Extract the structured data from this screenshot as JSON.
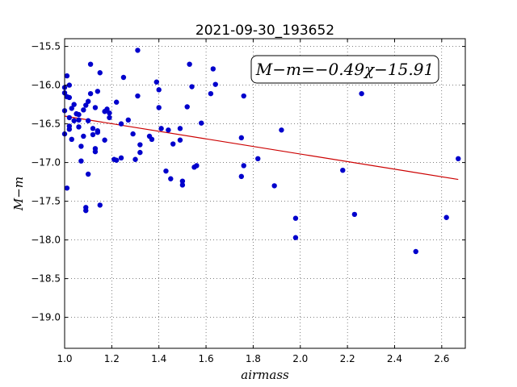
{
  "chart_data": {
    "type": "scatter",
    "title": "2021-09-30_193652",
    "xlabel": "airmass",
    "ylabel": "M−m",
    "xlim": [
      1.0,
      2.7
    ],
    "ylim": [
      -15.4,
      -19.4
    ],
    "y_inverted": true,
    "grid": true,
    "x_ticks": [
      "1.0",
      "1.2",
      "1.4",
      "1.6",
      "1.8",
      "2.0",
      "2.2",
      "2.4",
      "2.6"
    ],
    "x_tick_values": [
      1.0,
      1.2,
      1.4,
      1.6,
      1.8,
      2.0,
      2.2,
      2.4,
      2.6
    ],
    "y_ticks": [
      "−15.5",
      "−16.0",
      "−16.5",
      "−17.0",
      "−17.5",
      "−18.0",
      "−18.5",
      "−19.0"
    ],
    "y_tick_values": [
      -15.5,
      -16.0,
      -16.5,
      -17.0,
      -17.5,
      -18.0,
      -18.5,
      -19.0
    ],
    "annotation": "M−m=−0.49χ−15.91",
    "point_color": "#0000cc",
    "line_color": "#cc0000",
    "fit": {
      "slope": -0.49,
      "intercept": -15.91,
      "x_range": [
        1.0,
        2.67
      ]
    },
    "points": [
      [
        1.0,
        -16.03
      ],
      [
        1.0,
        -16.1
      ],
      [
        1.0,
        -16.33
      ],
      [
        1.0,
        -16.63
      ],
      [
        1.01,
        -17.33
      ],
      [
        1.01,
        -15.88
      ],
      [
        1.01,
        -16.15
      ],
      [
        1.02,
        -16.42
      ],
      [
        1.02,
        -16.0
      ],
      [
        1.02,
        -16.16
      ],
      [
        1.02,
        -16.53
      ],
      [
        1.02,
        -16.57
      ],
      [
        1.03,
        -16.7
      ],
      [
        1.03,
        -16.3
      ],
      [
        1.04,
        -16.25
      ],
      [
        1.04,
        -16.46
      ],
      [
        1.05,
        -16.37
      ],
      [
        1.06,
        -16.54
      ],
      [
        1.06,
        -16.45
      ],
      [
        1.06,
        -16.38
      ],
      [
        1.07,
        -16.79
      ],
      [
        1.07,
        -16.98
      ],
      [
        1.08,
        -16.66
      ],
      [
        1.08,
        -16.32
      ],
      [
        1.09,
        -17.58
      ],
      [
        1.09,
        -17.62
      ],
      [
        1.09,
        -16.26
      ],
      [
        1.1,
        -17.15
      ],
      [
        1.1,
        -16.21
      ],
      [
        1.1,
        -16.46
      ],
      [
        1.11,
        -15.73
      ],
      [
        1.11,
        -16.11
      ],
      [
        1.12,
        -16.64
      ],
      [
        1.12,
        -16.56
      ],
      [
        1.13,
        -16.29
      ],
      [
        1.13,
        -16.82
      ],
      [
        1.13,
        -16.86
      ],
      [
        1.14,
        -16.61
      ],
      [
        1.14,
        -16.08
      ],
      [
        1.14,
        -16.59
      ],
      [
        1.15,
        -17.55
      ],
      [
        1.15,
        -15.84
      ],
      [
        1.17,
        -16.71
      ],
      [
        1.17,
        -16.34
      ],
      [
        1.18,
        -16.31
      ],
      [
        1.19,
        -16.42
      ],
      [
        1.19,
        -16.36
      ],
      [
        1.21,
        -16.96
      ],
      [
        1.22,
        -16.22
      ],
      [
        1.22,
        -16.97
      ],
      [
        1.24,
        -16.5
      ],
      [
        1.24,
        -16.94
      ],
      [
        1.25,
        -15.9
      ],
      [
        1.27,
        -16.45
      ],
      [
        1.29,
        -16.63
      ],
      [
        1.3,
        -16.96
      ],
      [
        1.31,
        -15.55
      ],
      [
        1.31,
        -16.14
      ],
      [
        1.32,
        -16.87
      ],
      [
        1.32,
        -16.77
      ],
      [
        1.36,
        -16.66
      ],
      [
        1.37,
        -16.7
      ],
      [
        1.39,
        -15.96
      ],
      [
        1.4,
        -16.06
      ],
      [
        1.41,
        -16.56
      ],
      [
        1.4,
        -16.29
      ],
      [
        1.43,
        -17.11
      ],
      [
        1.44,
        -16.58
      ],
      [
        1.45,
        -17.21
      ],
      [
        1.46,
        -16.76
      ],
      [
        1.49,
        -16.71
      ],
      [
        1.49,
        -16.56
      ],
      [
        1.5,
        -17.24
      ],
      [
        1.5,
        -17.29
      ],
      [
        1.52,
        -16.28
      ],
      [
        1.53,
        -15.73
      ],
      [
        1.54,
        -16.02
      ],
      [
        1.55,
        -17.06
      ],
      [
        1.56,
        -17.04
      ],
      [
        1.58,
        -16.49
      ],
      [
        1.62,
        -16.11
      ],
      [
        1.63,
        -15.79
      ],
      [
        1.64,
        -15.99
      ],
      [
        1.75,
        -16.68
      ],
      [
        1.75,
        -17.18
      ],
      [
        1.76,
        -16.14
      ],
      [
        1.76,
        -17.04
      ],
      [
        1.82,
        -16.95
      ],
      [
        1.89,
        -17.3
      ],
      [
        1.92,
        -16.58
      ],
      [
        1.98,
        -17.72
      ],
      [
        1.98,
        -17.97
      ],
      [
        2.18,
        -17.1
      ],
      [
        2.23,
        -17.67
      ],
      [
        2.26,
        -16.11
      ],
      [
        2.49,
        -18.15
      ],
      [
        2.62,
        -17.71
      ],
      [
        2.67,
        -16.95
      ]
    ]
  }
}
